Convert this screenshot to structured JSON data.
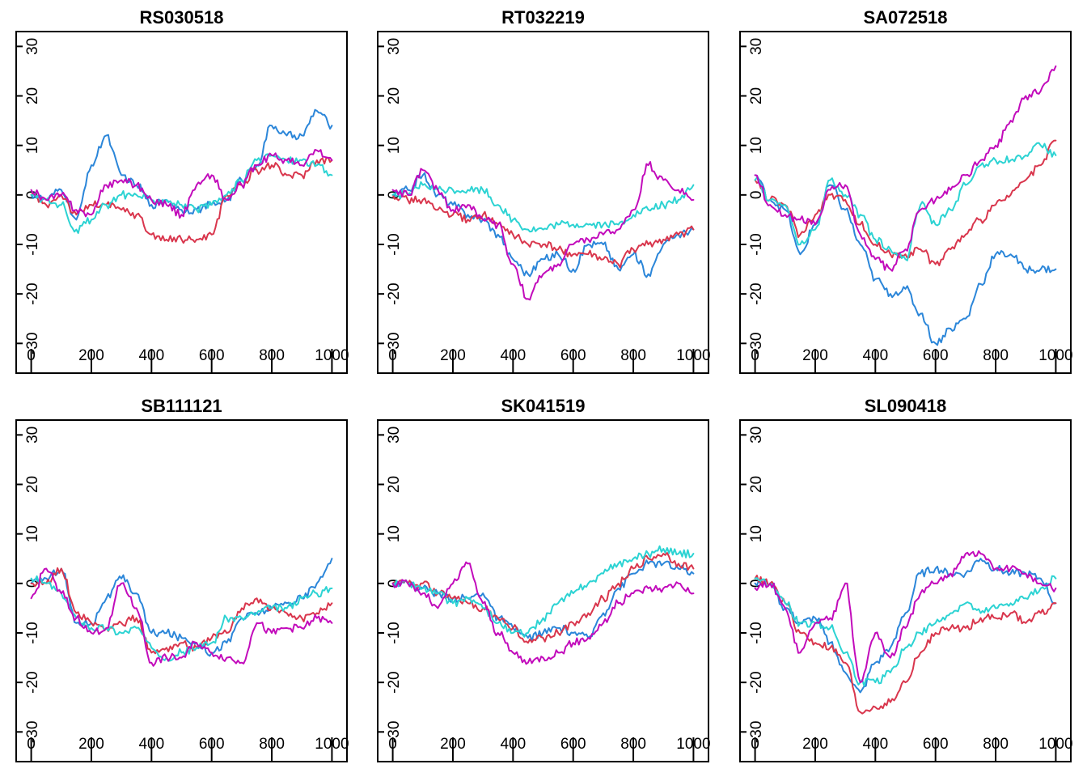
{
  "series_colors": [
    "#2b86d9",
    "#d9364d",
    "#2cd3d3",
    "#c20bbb"
  ],
  "chart_data": [
    {
      "type": "line",
      "title": "RS030518",
      "x_ticks": [
        "0",
        "200",
        "400",
        "600",
        "800",
        "1000"
      ],
      "y_ticks": [
        "-30",
        "-20",
        "-10",
        "0",
        "10",
        "20",
        "30"
      ],
      "xlim": [
        -50,
        1050
      ],
      "ylim": [
        -36,
        33
      ],
      "x": [
        0,
        50,
        100,
        150,
        200,
        250,
        300,
        350,
        400,
        450,
        500,
        550,
        600,
        650,
        700,
        750,
        800,
        850,
        900,
        950,
        1000
      ],
      "series": [
        {
          "values": [
            0,
            -1,
            1,
            -5,
            6,
            12,
            4,
            2,
            -2,
            -1,
            -3,
            -3,
            -2,
            -1,
            3,
            6,
            14,
            12,
            12,
            17,
            14
          ]
        },
        {
          "values": [
            0,
            -2,
            0,
            -4,
            -2,
            -2,
            -3,
            -4,
            -8,
            -9,
            -9,
            -9,
            -8,
            0,
            2,
            5,
            6,
            4,
            4,
            7,
            7
          ]
        },
        {
          "values": [
            0,
            -1,
            -2,
            -7,
            -5,
            -2,
            0,
            0,
            -1,
            -1,
            -2,
            -3,
            -2,
            0,
            3,
            7,
            8,
            7,
            7,
            6,
            4
          ]
        },
        {
          "values": [
            1,
            -1,
            0,
            -3,
            -4,
            2,
            3,
            2,
            -1,
            -2,
            -4,
            2,
            4,
            -1,
            2,
            6,
            8,
            7,
            6,
            9,
            7
          ]
        }
      ]
    },
    {
      "type": "line",
      "title": "RT032219",
      "x_ticks": [
        "0",
        "200",
        "400",
        "600",
        "800",
        "1000"
      ],
      "y_ticks": [
        "-30",
        "-20",
        "-10",
        "0",
        "10",
        "20",
        "30"
      ],
      "xlim": [
        -50,
        1050
      ],
      "ylim": [
        -36,
        33
      ],
      "x": [
        0,
        50,
        100,
        150,
        200,
        250,
        300,
        350,
        400,
        450,
        500,
        550,
        600,
        650,
        700,
        750,
        800,
        850,
        900,
        950,
        1000
      ],
      "series": [
        {
          "values": [
            0,
            1,
            4,
            0,
            -2,
            -4,
            -5,
            -8,
            -13,
            -16,
            -13,
            -12,
            -15,
            -10,
            -10,
            -15,
            -12,
            -16,
            -10,
            -8,
            -7
          ]
        },
        {
          "values": [
            0,
            -1,
            -1,
            -3,
            -4,
            -5,
            -4,
            -6,
            -8,
            -10,
            -10,
            -11,
            -12,
            -12,
            -13,
            -14,
            -11,
            -10,
            -9,
            -8,
            -7
          ]
        },
        {
          "values": [
            0,
            0,
            2,
            1,
            1,
            1,
            1,
            -2,
            -5,
            -7,
            -7,
            -6,
            -6,
            -6,
            -6,
            -6,
            -4,
            -3,
            -2,
            -1,
            2
          ]
        },
        {
          "values": [
            1,
            0,
            5,
            1,
            -3,
            -2,
            -5,
            -6,
            -14,
            -21,
            -16,
            -14,
            -10,
            -9,
            -8,
            -7,
            -3,
            6,
            3,
            1,
            -1
          ]
        }
      ]
    },
    {
      "type": "line",
      "title": "SA072518",
      "x_ticks": [
        "0",
        "200",
        "400",
        "600",
        "800",
        "1000"
      ],
      "y_ticks": [
        "-30",
        "-20",
        "-10",
        "0",
        "10",
        "20",
        "30"
      ],
      "xlim": [
        -50,
        1050
      ],
      "ylim": [
        -36,
        33
      ],
      "x": [
        0,
        50,
        100,
        150,
        200,
        250,
        300,
        350,
        400,
        450,
        500,
        550,
        600,
        650,
        700,
        750,
        800,
        850,
        900,
        950,
        1000
      ],
      "series": [
        {
          "values": [
            4,
            -1,
            -3,
            -12,
            -6,
            2,
            -3,
            -10,
            -17,
            -20,
            -19,
            -24,
            -30,
            -27,
            -25,
            -18,
            -12,
            -12,
            -15,
            -15,
            -15
          ]
        },
        {
          "values": [
            3,
            -1,
            -2,
            -8,
            -4,
            0,
            -1,
            -6,
            -10,
            -12,
            -12,
            -11,
            -14,
            -11,
            -8,
            -5,
            -2,
            0,
            3,
            6,
            11
          ]
        },
        {
          "values": [
            3,
            -1,
            -2,
            -10,
            -7,
            3,
            0,
            -4,
            -9,
            -11,
            -13,
            -2,
            -6,
            -3,
            2,
            6,
            7,
            7,
            8,
            10,
            8
          ]
        },
        {
          "values": [
            4,
            -2,
            -4,
            -5,
            -6,
            1,
            2,
            -8,
            -13,
            -15,
            -11,
            -3,
            -1,
            1,
            4,
            7,
            10,
            15,
            20,
            21,
            26
          ]
        }
      ]
    },
    {
      "type": "line",
      "title": "SB111121",
      "x_ticks": [
        "0",
        "200",
        "400",
        "600",
        "800",
        "1000"
      ],
      "y_ticks": [
        "-30",
        "-20",
        "-10",
        "0",
        "10",
        "20",
        "30"
      ],
      "xlim": [
        -50,
        1050
      ],
      "ylim": [
        -36,
        33
      ],
      "x": [
        0,
        50,
        100,
        150,
        200,
        250,
        300,
        350,
        400,
        450,
        500,
        550,
        600,
        650,
        700,
        750,
        800,
        850,
        900,
        950,
        1000
      ],
      "series": [
        {
          "values": [
            0,
            1,
            3,
            -8,
            -8,
            -3,
            1,
            -2,
            -10,
            -10,
            -11,
            -12,
            -14,
            -12,
            -7,
            -6,
            -5,
            -4,
            -3,
            0,
            5
          ]
        },
        {
          "values": [
            0,
            0,
            3,
            -6,
            -8,
            -9,
            -8,
            -7,
            -14,
            -13,
            -12,
            -13,
            -11,
            -10,
            -5,
            -3,
            -5,
            -6,
            -7,
            -6,
            -4
          ]
        },
        {
          "values": [
            1,
            0,
            -2,
            -7,
            -9,
            -9,
            -10,
            -9,
            -13,
            -15,
            -14,
            -13,
            -12,
            -7,
            -7,
            -6,
            -5,
            -5,
            -3,
            -2,
            -1
          ]
        },
        {
          "values": [
            -3,
            3,
            -2,
            -7,
            -10,
            -9,
            0,
            -5,
            -16,
            -15,
            -15,
            -12,
            -14,
            -15,
            -16,
            -8,
            -10,
            -9,
            -9,
            -7,
            -8
          ]
        }
      ]
    },
    {
      "type": "line",
      "title": "SK041519",
      "x_ticks": [
        "0",
        "200",
        "400",
        "600",
        "800",
        "1000"
      ],
      "y_ticks": [
        "-30",
        "-20",
        "-10",
        "0",
        "10",
        "20",
        "30"
      ],
      "xlim": [
        -50,
        1050
      ],
      "ylim": [
        -36,
        33
      ],
      "x": [
        0,
        50,
        100,
        150,
        200,
        250,
        300,
        350,
        400,
        450,
        500,
        550,
        600,
        650,
        700,
        750,
        800,
        850,
        900,
        950,
        1000
      ],
      "series": [
        {
          "values": [
            0,
            0,
            -1,
            -2,
            -3,
            -3,
            -2,
            -7,
            -9,
            -11,
            -10,
            -9,
            -10,
            -11,
            -6,
            -1,
            2,
            4,
            4,
            3,
            2
          ]
        },
        {
          "values": [
            0,
            0,
            0,
            -2,
            -3,
            -4,
            -5,
            -7,
            -9,
            -12,
            -11,
            -10,
            -8,
            -6,
            -3,
            0,
            3,
            5,
            6,
            4,
            3
          ]
        },
        {
          "values": [
            0,
            0,
            -1,
            -2,
            -4,
            -3,
            -5,
            -8,
            -10,
            -10,
            -7,
            -4,
            -2,
            0,
            2,
            4,
            5,
            6,
            7,
            6,
            6
          ]
        },
        {
          "values": [
            0,
            0,
            -2,
            -5,
            0,
            4,
            -4,
            -10,
            -14,
            -16,
            -15,
            -14,
            -12,
            -11,
            -8,
            -4,
            -2,
            -1,
            -1,
            0,
            -2
          ]
        }
      ]
    },
    {
      "type": "line",
      "title": "SL090418",
      "x_ticks": [
        "0",
        "200",
        "400",
        "600",
        "800",
        "1000"
      ],
      "y_ticks": [
        "-30",
        "-20",
        "-10",
        "0",
        "10",
        "20",
        "30"
      ],
      "xlim": [
        -50,
        1050
      ],
      "ylim": [
        -36,
        33
      ],
      "x": [
        0,
        50,
        100,
        150,
        200,
        250,
        300,
        350,
        400,
        450,
        500,
        550,
        600,
        650,
        700,
        750,
        800,
        850,
        900,
        950,
        1000
      ],
      "series": [
        {
          "values": [
            0,
            0,
            -5,
            -8,
            -7,
            -12,
            -18,
            -22,
            -16,
            -13,
            -6,
            2,
            3,
            2,
            2,
            5,
            3,
            2,
            2,
            1,
            -4
          ]
        },
        {
          "values": [
            1,
            0,
            -4,
            -10,
            -12,
            -13,
            -16,
            -26,
            -25,
            -24,
            -20,
            -14,
            -10,
            -9,
            -9,
            -7,
            -7,
            -6,
            -8,
            -6,
            -4
          ]
        },
        {
          "values": [
            1,
            0,
            -4,
            -8,
            -8,
            -9,
            -14,
            -20,
            -20,
            -18,
            -13,
            -10,
            -8,
            -6,
            -4,
            -6,
            -5,
            -4,
            -3,
            -1,
            1
          ]
        },
        {
          "values": [
            -1,
            0,
            -5,
            -14,
            -8,
            -7,
            0,
            -20,
            -10,
            -15,
            -9,
            -2,
            0,
            2,
            6,
            6,
            3,
            3,
            2,
            0,
            -1
          ]
        }
      ]
    }
  ]
}
